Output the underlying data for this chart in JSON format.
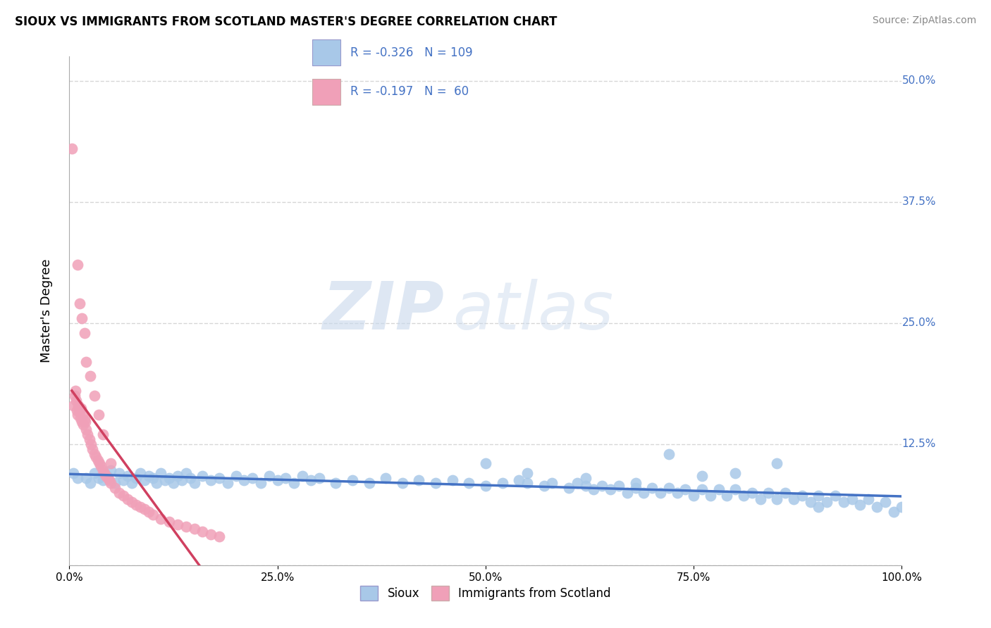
{
  "title": "SIOUX VS IMMIGRANTS FROM SCOTLAND MASTER'S DEGREE CORRELATION CHART",
  "source": "Source: ZipAtlas.com",
  "ylabel": "Master's Degree",
  "xlim": [
    0.0,
    1.0
  ],
  "ylim": [
    0.0,
    0.525
  ],
  "xticks": [
    0.0,
    0.25,
    0.5,
    0.75,
    1.0
  ],
  "xticklabels": [
    "0.0%",
    "25.0%",
    "50.0%",
    "75.0%",
    "100.0%"
  ],
  "yticks": [
    0.0,
    0.125,
    0.25,
    0.375,
    0.5
  ],
  "yticklabels": [
    "",
    "12.5%",
    "25.0%",
    "37.5%",
    "50.0%"
  ],
  "sioux_R": "-0.326",
  "sioux_N": "109",
  "scotland_R": "-0.197",
  "scotland_N": "60",
  "blue_color": "#a8c8e8",
  "pink_color": "#f0a0b8",
  "blue_line_color": "#4472c4",
  "pink_line_color": "#d04060",
  "watermark_zip": "ZIP",
  "watermark_atlas": "atlas",
  "sioux_x": [
    0.005,
    0.01,
    0.02,
    0.025,
    0.03,
    0.035,
    0.04,
    0.045,
    0.05,
    0.055,
    0.06,
    0.065,
    0.07,
    0.075,
    0.08,
    0.085,
    0.09,
    0.095,
    0.1,
    0.105,
    0.11,
    0.115,
    0.12,
    0.125,
    0.13,
    0.135,
    0.14,
    0.145,
    0.15,
    0.16,
    0.17,
    0.18,
    0.19,
    0.2,
    0.21,
    0.22,
    0.23,
    0.24,
    0.25,
    0.26,
    0.27,
    0.28,
    0.29,
    0.3,
    0.32,
    0.34,
    0.36,
    0.38,
    0.4,
    0.42,
    0.44,
    0.46,
    0.48,
    0.5,
    0.52,
    0.54,
    0.55,
    0.57,
    0.58,
    0.6,
    0.61,
    0.62,
    0.63,
    0.64,
    0.65,
    0.66,
    0.67,
    0.68,
    0.69,
    0.7,
    0.71,
    0.72,
    0.73,
    0.74,
    0.75,
    0.76,
    0.77,
    0.78,
    0.79,
    0.8,
    0.81,
    0.82,
    0.83,
    0.84,
    0.85,
    0.86,
    0.87,
    0.88,
    0.89,
    0.9,
    0.91,
    0.92,
    0.93,
    0.94,
    0.95,
    0.96,
    0.97,
    0.98,
    0.99,
    1.0,
    0.5,
    0.55,
    0.62,
    0.68,
    0.72,
    0.76,
    0.8,
    0.85,
    0.9
  ],
  "sioux_y": [
    0.095,
    0.09,
    0.09,
    0.085,
    0.095,
    0.09,
    0.088,
    0.092,
    0.098,
    0.085,
    0.095,
    0.088,
    0.092,
    0.085,
    0.09,
    0.095,
    0.088,
    0.092,
    0.09,
    0.085,
    0.095,
    0.088,
    0.09,
    0.085,
    0.092,
    0.088,
    0.095,
    0.09,
    0.085,
    0.092,
    0.088,
    0.09,
    0.085,
    0.092,
    0.088,
    0.09,
    0.085,
    0.092,
    0.088,
    0.09,
    0.085,
    0.092,
    0.088,
    0.09,
    0.085,
    0.088,
    0.085,
    0.09,
    0.085,
    0.088,
    0.085,
    0.088,
    0.085,
    0.082,
    0.085,
    0.088,
    0.085,
    0.082,
    0.085,
    0.08,
    0.085,
    0.082,
    0.078,
    0.082,
    0.078,
    0.082,
    0.075,
    0.08,
    0.075,
    0.08,
    0.075,
    0.08,
    0.075,
    0.078,
    0.072,
    0.078,
    0.072,
    0.078,
    0.072,
    0.078,
    0.072,
    0.075,
    0.068,
    0.075,
    0.068,
    0.075,
    0.068,
    0.072,
    0.065,
    0.072,
    0.065,
    0.072,
    0.065,
    0.068,
    0.062,
    0.068,
    0.06,
    0.065,
    0.055,
    0.06,
    0.105,
    0.095,
    0.09,
    0.085,
    0.115,
    0.092,
    0.095,
    0.105,
    0.06
  ],
  "scotland_x": [
    0.003,
    0.005,
    0.006,
    0.007,
    0.008,
    0.009,
    0.01,
    0.011,
    0.012,
    0.013,
    0.014,
    0.015,
    0.016,
    0.017,
    0.018,
    0.019,
    0.02,
    0.022,
    0.024,
    0.026,
    0.028,
    0.03,
    0.032,
    0.034,
    0.036,
    0.038,
    0.04,
    0.042,
    0.044,
    0.046,
    0.048,
    0.05,
    0.055,
    0.06,
    0.065,
    0.07,
    0.075,
    0.08,
    0.085,
    0.09,
    0.095,
    0.1,
    0.11,
    0.12,
    0.13,
    0.14,
    0.15,
    0.16,
    0.17,
    0.18,
    0.01,
    0.012,
    0.015,
    0.018,
    0.02,
    0.025,
    0.03,
    0.035,
    0.04,
    0.05
  ],
  "scotland_y": [
    0.43,
    0.165,
    0.175,
    0.18,
    0.17,
    0.16,
    0.155,
    0.165,
    0.158,
    0.152,
    0.162,
    0.148,
    0.155,
    0.145,
    0.15,
    0.148,
    0.14,
    0.135,
    0.13,
    0.125,
    0.12,
    0.115,
    0.112,
    0.108,
    0.105,
    0.102,
    0.098,
    0.095,
    0.092,
    0.09,
    0.088,
    0.085,
    0.08,
    0.075,
    0.072,
    0.068,
    0.065,
    0.062,
    0.06,
    0.058,
    0.055,
    0.052,
    0.048,
    0.045,
    0.042,
    0.04,
    0.038,
    0.035,
    0.032,
    0.03,
    0.31,
    0.27,
    0.255,
    0.24,
    0.21,
    0.195,
    0.175,
    0.155,
    0.135,
    0.105
  ]
}
